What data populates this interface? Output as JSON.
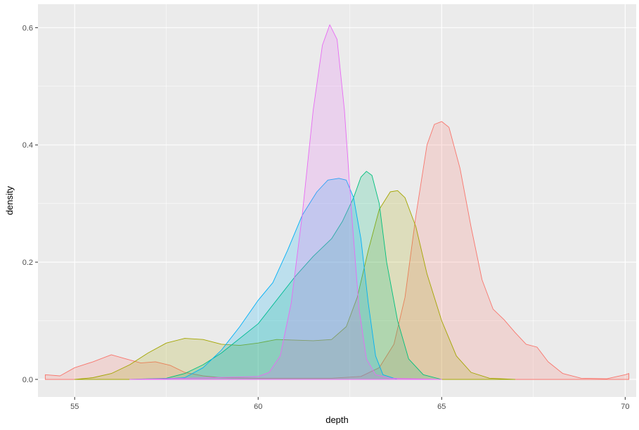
{
  "chart_data": {
    "type": "area",
    "xlabel": "depth",
    "ylabel": "density",
    "xlim": [
      54.0,
      70.3
    ],
    "ylim": [
      -0.03,
      0.64
    ],
    "x_ticks": [
      55,
      60,
      65,
      70
    ],
    "x_tick_labels": [
      "55",
      "60",
      "65",
      "70"
    ],
    "y_ticks": [
      0.0,
      0.2,
      0.4,
      0.6
    ],
    "y_tick_labels": [
      "0.0",
      "0.2",
      "0.4",
      "0.6"
    ],
    "grid": true,
    "legend": "none",
    "panel_background": "#EBEBEB",
    "grid_color": "#FFFFFF",
    "fill_alpha": 0.2,
    "series": [
      {
        "color": "#F8766D",
        "points": [
          [
            54.2,
            0.008
          ],
          [
            54.6,
            0.006
          ],
          [
            55.0,
            0.02
          ],
          [
            55.5,
            0.03
          ],
          [
            56.0,
            0.042
          ],
          [
            56.4,
            0.035
          ],
          [
            56.8,
            0.028
          ],
          [
            57.2,
            0.03
          ],
          [
            57.6,
            0.024
          ],
          [
            58.0,
            0.012
          ],
          [
            58.5,
            0.006
          ],
          [
            59.0,
            0.003
          ],
          [
            60.0,
            0.002
          ],
          [
            61.0,
            0.002
          ],
          [
            62.0,
            0.002
          ],
          [
            62.8,
            0.005
          ],
          [
            63.3,
            0.02
          ],
          [
            63.7,
            0.06
          ],
          [
            64.0,
            0.14
          ],
          [
            64.3,
            0.28
          ],
          [
            64.6,
            0.4
          ],
          [
            64.8,
            0.435
          ],
          [
            65.0,
            0.44
          ],
          [
            65.2,
            0.43
          ],
          [
            65.5,
            0.36
          ],
          [
            65.8,
            0.26
          ],
          [
            66.1,
            0.17
          ],
          [
            66.4,
            0.12
          ],
          [
            66.7,
            0.102
          ],
          [
            67.0,
            0.08
          ],
          [
            67.3,
            0.06
          ],
          [
            67.6,
            0.055
          ],
          [
            67.9,
            0.03
          ],
          [
            68.3,
            0.01
          ],
          [
            68.8,
            0.002
          ],
          [
            69.5,
            0.001
          ],
          [
            70.0,
            0.008
          ],
          [
            70.1,
            0.01
          ]
        ]
      },
      {
        "color": "#A3A500",
        "points": [
          [
            55.0,
            0.0
          ],
          [
            55.5,
            0.003
          ],
          [
            56.0,
            0.01
          ],
          [
            56.5,
            0.025
          ],
          [
            57.0,
            0.045
          ],
          [
            57.5,
            0.062
          ],
          [
            58.0,
            0.07
          ],
          [
            58.5,
            0.068
          ],
          [
            59.0,
            0.06
          ],
          [
            59.5,
            0.058
          ],
          [
            60.0,
            0.062
          ],
          [
            60.5,
            0.068
          ],
          [
            61.0,
            0.067
          ],
          [
            61.5,
            0.066
          ],
          [
            62.0,
            0.068
          ],
          [
            62.4,
            0.09
          ],
          [
            62.7,
            0.14
          ],
          [
            63.0,
            0.22
          ],
          [
            63.3,
            0.29
          ],
          [
            63.6,
            0.32
          ],
          [
            63.8,
            0.322
          ],
          [
            64.0,
            0.31
          ],
          [
            64.3,
            0.26
          ],
          [
            64.6,
            0.18
          ],
          [
            65.0,
            0.1
          ],
          [
            65.4,
            0.04
          ],
          [
            65.8,
            0.012
          ],
          [
            66.3,
            0.002
          ],
          [
            67.0,
            0.0
          ]
        ]
      },
      {
        "color": "#00BF7D",
        "points": [
          [
            56.5,
            0.0
          ],
          [
            57.5,
            0.002
          ],
          [
            58.0,
            0.01
          ],
          [
            58.5,
            0.025
          ],
          [
            59.0,
            0.045
          ],
          [
            59.5,
            0.07
          ],
          [
            60.0,
            0.095
          ],
          [
            60.5,
            0.135
          ],
          [
            61.0,
            0.175
          ],
          [
            61.5,
            0.21
          ],
          [
            62.0,
            0.24
          ],
          [
            62.3,
            0.27
          ],
          [
            62.6,
            0.31
          ],
          [
            62.8,
            0.345
          ],
          [
            62.95,
            0.355
          ],
          [
            63.1,
            0.348
          ],
          [
            63.3,
            0.3
          ],
          [
            63.5,
            0.2
          ],
          [
            63.8,
            0.1
          ],
          [
            64.1,
            0.035
          ],
          [
            64.5,
            0.008
          ],
          [
            65.0,
            0.0
          ]
        ]
      },
      {
        "color": "#00B0F6",
        "points": [
          [
            57.2,
            0.0
          ],
          [
            58.0,
            0.003
          ],
          [
            58.5,
            0.02
          ],
          [
            59.0,
            0.05
          ],
          [
            59.5,
            0.09
          ],
          [
            60.0,
            0.135
          ],
          [
            60.4,
            0.165
          ],
          [
            60.8,
            0.22
          ],
          [
            61.2,
            0.28
          ],
          [
            61.6,
            0.32
          ],
          [
            61.9,
            0.34
          ],
          [
            62.2,
            0.343
          ],
          [
            62.4,
            0.34
          ],
          [
            62.6,
            0.31
          ],
          [
            62.8,
            0.24
          ],
          [
            63.0,
            0.13
          ],
          [
            63.2,
            0.04
          ],
          [
            63.4,
            0.008
          ],
          [
            63.8,
            0.0
          ]
        ]
      },
      {
        "color": "#E76BF3",
        "points": [
          [
            56.5,
            0.0
          ],
          [
            58.0,
            0.002
          ],
          [
            59.5,
            0.004
          ],
          [
            60.0,
            0.005
          ],
          [
            60.3,
            0.012
          ],
          [
            60.6,
            0.04
          ],
          [
            60.9,
            0.13
          ],
          [
            61.2,
            0.28
          ],
          [
            61.5,
            0.46
          ],
          [
            61.75,
            0.57
          ],
          [
            61.95,
            0.605
          ],
          [
            62.15,
            0.58
          ],
          [
            62.35,
            0.46
          ],
          [
            62.55,
            0.28
          ],
          [
            62.75,
            0.12
          ],
          [
            62.95,
            0.035
          ],
          [
            63.2,
            0.008
          ],
          [
            63.6,
            0.002
          ],
          [
            65.0,
            0.0
          ]
        ]
      }
    ]
  }
}
